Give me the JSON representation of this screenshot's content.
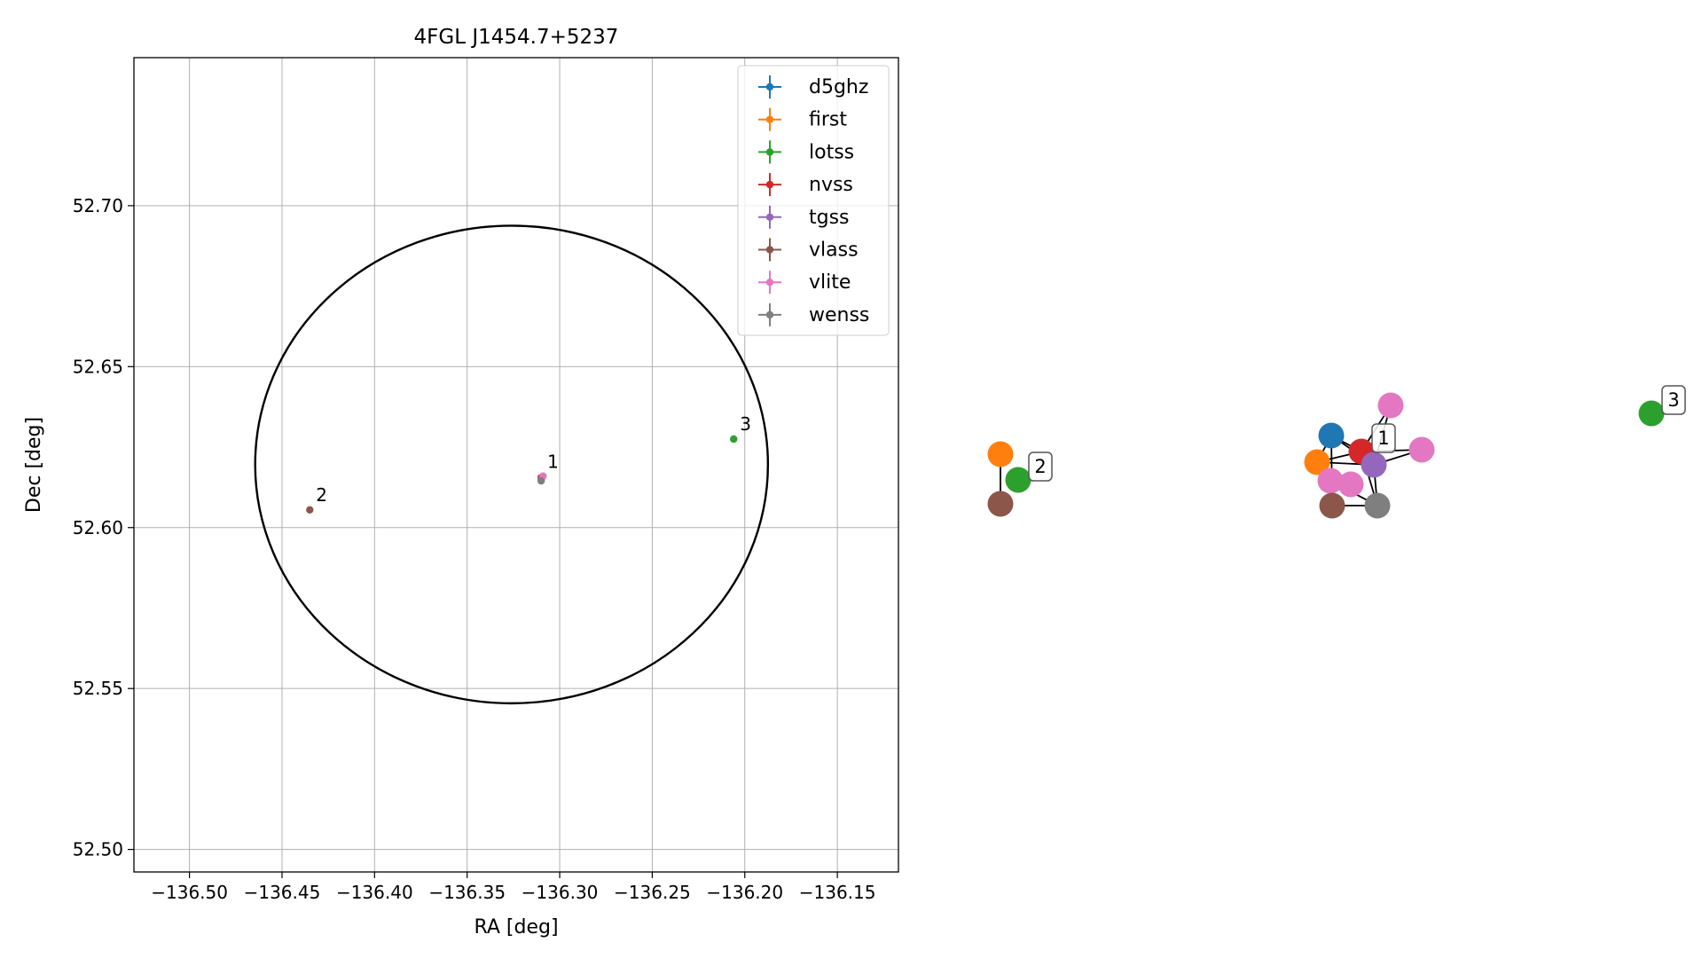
{
  "chart_data": [
    {
      "type": "scatter",
      "title": "4FGL J1454.7+5237",
      "xlabel": "RA [deg]",
      "ylabel": "Dec [deg]",
      "xlim": [
        -136.53,
        -136.117
      ],
      "ylim": [
        52.493,
        52.746
      ],
      "xticks": [
        -136.5,
        -136.45,
        -136.4,
        -136.35,
        -136.3,
        -136.25,
        -136.2,
        -136.15
      ],
      "xtick_labels": [
        "−136.50",
        "−136.45",
        "−136.40",
        "−136.35",
        "−136.30",
        "−136.25",
        "−136.20",
        "−136.15"
      ],
      "yticks": [
        52.5,
        52.55,
        52.6,
        52.65,
        52.7
      ],
      "ytick_labels": [
        "52.50",
        "52.55",
        "52.60",
        "52.65",
        "52.70"
      ],
      "grid": true,
      "legend_position": "top-right",
      "series": [
        {
          "name": "d5ghz",
          "color": "#1f77b4",
          "points": [
            {
              "x": -136.31,
              "y": 52.6155
            }
          ]
        },
        {
          "name": "first",
          "color": "#ff7f0e",
          "points": [
            {
              "x": -136.31,
              "y": 52.615
            }
          ]
        },
        {
          "name": "lotss",
          "color": "#2ca02c",
          "points": [
            {
              "x": -136.206,
              "y": 52.6275
            }
          ]
        },
        {
          "name": "nvss",
          "color": "#d62728",
          "points": [
            {
              "x": -136.31,
              "y": 52.6155
            }
          ]
        },
        {
          "name": "tgss",
          "color": "#9467bd",
          "points": [
            {
              "x": -136.31,
              "y": 52.615
            }
          ]
        },
        {
          "name": "vlass",
          "color": "#8c564b",
          "points": [
            {
              "x": -136.435,
              "y": 52.6055
            }
          ]
        },
        {
          "name": "vlite",
          "color": "#e377c2",
          "points": [
            {
              "x": -136.309,
              "y": 52.616
            }
          ]
        },
        {
          "name": "wenss",
          "color": "#7f7f7f",
          "points": [
            {
              "x": -136.31,
              "y": 52.6145
            }
          ]
        }
      ],
      "annotations": [
        {
          "text": "1",
          "x": -136.31,
          "y": 52.6158
        },
        {
          "text": "2",
          "x": -136.435,
          "y": 52.6055
        },
        {
          "text": "3",
          "x": -136.206,
          "y": 52.6275
        }
      ],
      "ellipse": {
        "center_ra": -136.326,
        "center_dec": 52.6196,
        "semi_axis_ra": 0.1385,
        "semi_axis_dec": 0.0742
      }
    }
  ],
  "network": {
    "nodes": [
      {
        "id": "n2-first",
        "series": "first",
        "color": "#ff7f0e"
      },
      {
        "id": "n2-lotss",
        "series": "lotss",
        "color": "#2ca02c"
      },
      {
        "id": "n2-vlass",
        "series": "vlass",
        "color": "#8c564b"
      },
      {
        "id": "n1-d5ghz",
        "series": "d5ghz",
        "color": "#1f77b4"
      },
      {
        "id": "n1-first",
        "series": "first",
        "color": "#ff7f0e"
      },
      {
        "id": "n1-nvss",
        "series": "nvss",
        "color": "#d62728"
      },
      {
        "id": "n1-tgss",
        "series": "tgss",
        "color": "#9467bd"
      },
      {
        "id": "n1-vlite-a",
        "series": "vlite",
        "color": "#e377c2"
      },
      {
        "id": "n1-vlite-b",
        "series": "vlite",
        "color": "#e377c2"
      },
      {
        "id": "n1-vlite-c",
        "series": "vlite",
        "color": "#e377c2"
      },
      {
        "id": "n1-vlite-d",
        "series": "vlite",
        "color": "#e377c2"
      },
      {
        "id": "n1-vlass",
        "series": "vlass",
        "color": "#8c564b"
      },
      {
        "id": "n1-wenss",
        "series": "wenss",
        "color": "#7f7f7f"
      },
      {
        "id": "n3-lotss",
        "series": "lotss",
        "color": "#2ca02c"
      }
    ],
    "edges": [
      [
        "n2-first",
        "n2-vlass"
      ],
      [
        "n1-d5ghz",
        "n1-nvss"
      ],
      [
        "n1-d5ghz",
        "n1-first"
      ],
      [
        "n1-d5ghz",
        "n1-tgss"
      ],
      [
        "n1-d5ghz",
        "n1-vlass"
      ],
      [
        "n1-first",
        "n1-nvss"
      ],
      [
        "n1-first",
        "n1-tgss"
      ],
      [
        "n1-nvss",
        "n1-tgss"
      ],
      [
        "n1-nvss",
        "n1-vlite-b"
      ],
      [
        "n1-nvss",
        "n1-vlite-a"
      ],
      [
        "n1-nvss",
        "n1-wenss"
      ],
      [
        "n1-tgss",
        "n1-vlite-a"
      ],
      [
        "n1-tgss",
        "n1-vlite-b"
      ],
      [
        "n1-tgss",
        "n1-wenss"
      ],
      [
        "n1-vlite-c",
        "n1-vlite-d"
      ],
      [
        "n1-vlite-c",
        "n1-wenss"
      ],
      [
        "n1-vlass",
        "n1-wenss"
      ],
      [
        "n1-vlass",
        "n1-vlite-c"
      ]
    ],
    "labels": [
      {
        "text": "1",
        "node": "n1-nvss"
      },
      {
        "text": "2",
        "node": "n2-lotss"
      },
      {
        "text": "3",
        "node": "n3-lotss"
      }
    ]
  }
}
